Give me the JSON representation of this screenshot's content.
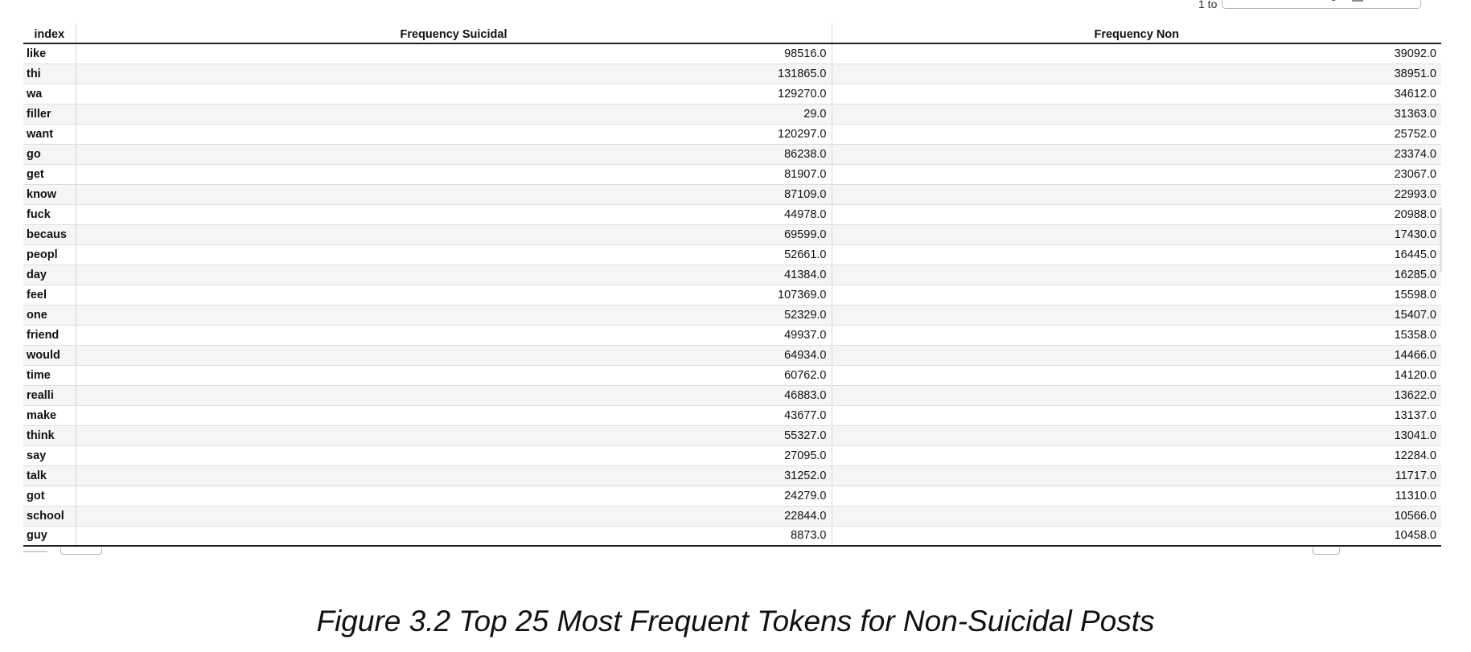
{
  "toolbar": {
    "pager_text": "1 to",
    "icons": [
      "dropdown-icon",
      "filter-icon",
      "comment-icon",
      "move-icon",
      "settings-icon",
      "export-icon",
      "stop-icon",
      "more-icon"
    ]
  },
  "table": {
    "headers": [
      "index",
      "Frequency Suicidal",
      "Frequency Non"
    ],
    "rows": [
      {
        "index": "like",
        "suicidal": "98516.0",
        "non": "39092.0"
      },
      {
        "index": "thi",
        "suicidal": "131865.0",
        "non": "38951.0"
      },
      {
        "index": "wa",
        "suicidal": "129270.0",
        "non": "34612.0"
      },
      {
        "index": "filler",
        "suicidal": "29.0",
        "non": "31363.0"
      },
      {
        "index": "want",
        "suicidal": "120297.0",
        "non": "25752.0"
      },
      {
        "index": "go",
        "suicidal": "86238.0",
        "non": "23374.0"
      },
      {
        "index": "get",
        "suicidal": "81907.0",
        "non": "23067.0"
      },
      {
        "index": "know",
        "suicidal": "87109.0",
        "non": "22993.0"
      },
      {
        "index": "fuck",
        "suicidal": "44978.0",
        "non": "20988.0"
      },
      {
        "index": "becaus",
        "suicidal": "69599.0",
        "non": "17430.0"
      },
      {
        "index": "peopl",
        "suicidal": "52661.0",
        "non": "16445.0"
      },
      {
        "index": "day",
        "suicidal": "41384.0",
        "non": "16285.0"
      },
      {
        "index": "feel",
        "suicidal": "107369.0",
        "non": "15598.0"
      },
      {
        "index": "one",
        "suicidal": "52329.0",
        "non": "15407.0"
      },
      {
        "index": "friend",
        "suicidal": "49937.0",
        "non": "15358.0"
      },
      {
        "index": "would",
        "suicidal": "64934.0",
        "non": "14466.0"
      },
      {
        "index": "time",
        "suicidal": "60762.0",
        "non": "14120.0"
      },
      {
        "index": "realli",
        "suicidal": "46883.0",
        "non": "13622.0"
      },
      {
        "index": "make",
        "suicidal": "43677.0",
        "non": "13137.0"
      },
      {
        "index": "think",
        "suicidal": "55327.0",
        "non": "13041.0"
      },
      {
        "index": "say",
        "suicidal": "27095.0",
        "non": "12284.0"
      },
      {
        "index": "talk",
        "suicidal": "31252.0",
        "non": "11717.0"
      },
      {
        "index": "got",
        "suicidal": "24279.0",
        "non": "11310.0"
      },
      {
        "index": "school",
        "suicidal": "22844.0",
        "non": "10566.0"
      },
      {
        "index": "guy",
        "suicidal": "8873.0",
        "non": "10458.0"
      }
    ]
  },
  "caption": "Figure 3.2 Top 25 Most Frequent Tokens for Non-Suicidal Posts"
}
